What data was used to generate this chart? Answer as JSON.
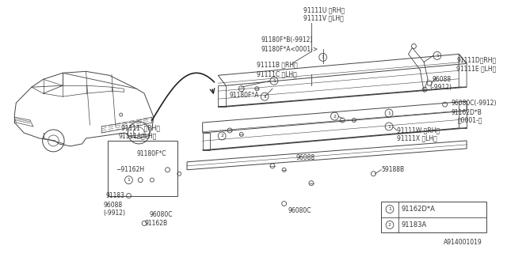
{
  "bg_color": "#ffffff",
  "line_color": "#444444",
  "text_color": "#333333",
  "fig_width": 6.4,
  "fig_height": 3.2,
  "dpi": 100,
  "diagram_id": "A914001019",
  "legend_items": [
    {
      "num": "1",
      "label": "91162D*A"
    },
    {
      "num": "2",
      "label": "91183A"
    }
  ]
}
